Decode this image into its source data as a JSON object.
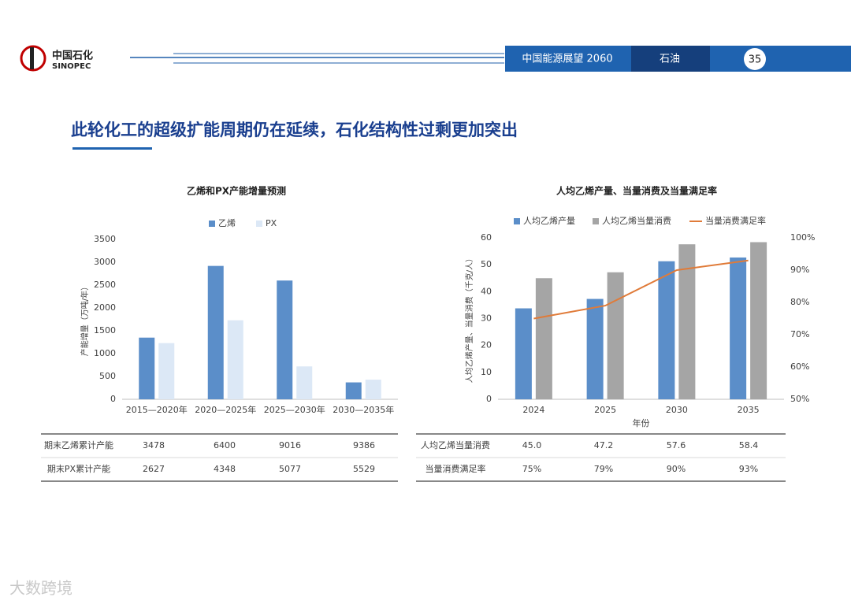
{
  "header": {
    "logo_cn": "中国石化",
    "logo_en": "SINOPEC",
    "report": "中国能源展望 2060",
    "section": "石油",
    "page": "35"
  },
  "title": "此轮化工的超级扩能周期仍在延续，石化结构性过剩更加突出",
  "chart_data": [
    {
      "type": "bar",
      "title": "乙烯和PX产能增量预测",
      "y_label": "产能增量（万吨/年）",
      "categories": [
        "2015—2020年",
        "2020—2025年",
        "2025—2030年",
        "2030—2035年"
      ],
      "series": [
        {
          "name": "乙烯",
          "type": "bar",
          "color": "#5b8ec9",
          "values": [
            1350,
            2920,
            2600,
            370
          ]
        },
        {
          "name": "PX",
          "type": "bar",
          "color": "#dce8f6",
          "values": [
            1230,
            1730,
            720,
            430
          ]
        }
      ],
      "ylim": [
        0,
        3500
      ],
      "yticks": [
        0,
        500,
        1000,
        1500,
        2000,
        2500,
        3000,
        3500
      ],
      "grid": false
    },
    {
      "type": "combo",
      "title": "人均乙烯产量、当量消费及当量满足率",
      "x_label": "年份",
      "y_label": "人均乙烯产量、当量消费（千克/人）",
      "categories": [
        "2024",
        "2025",
        "2030",
        "2035"
      ],
      "series": [
        {
          "name": "人均乙烯产量",
          "type": "bar",
          "color": "#5b8ec9",
          "values": [
            33.8,
            37.3,
            51.3,
            52.7
          ]
        },
        {
          "name": "人均乙烯当量消费",
          "type": "bar",
          "color": "#a5a5a5",
          "values": [
            45.0,
            47.2,
            57.6,
            58.4
          ]
        },
        {
          "name": "当量消费满足率",
          "type": "line",
          "axis": "y2",
          "color": "#e07b39",
          "values": [
            75,
            79,
            90,
            93
          ]
        }
      ],
      "ylim": [
        0,
        60
      ],
      "yticks": [
        0,
        10,
        20,
        30,
        40,
        50,
        60
      ],
      "y2lim": [
        50,
        100
      ],
      "y2ticks": [
        {
          "value": 50,
          "label": "50%"
        },
        {
          "value": 60,
          "label": "60%"
        },
        {
          "value": 70,
          "label": "70%"
        },
        {
          "value": 80,
          "label": "80%"
        },
        {
          "value": 90,
          "label": "90%"
        },
        {
          "value": 100,
          "label": "100%"
        }
      ],
      "grid": false
    }
  ],
  "tables": [
    {
      "rows": [
        [
          "期末乙烯累计产能",
          "3478",
          "6400",
          "9016",
          "9386"
        ],
        [
          "期末PX累计产能",
          "2627",
          "4348",
          "5077",
          "5529"
        ]
      ]
    },
    {
      "rows": [
        [
          "人均乙烯当量消费",
          "45.0",
          "47.2",
          "57.6",
          "58.4"
        ],
        [
          "当量消费满足率",
          "75%",
          "79%",
          "90%",
          "93%"
        ]
      ]
    }
  ],
  "watermark": "大数跨境"
}
